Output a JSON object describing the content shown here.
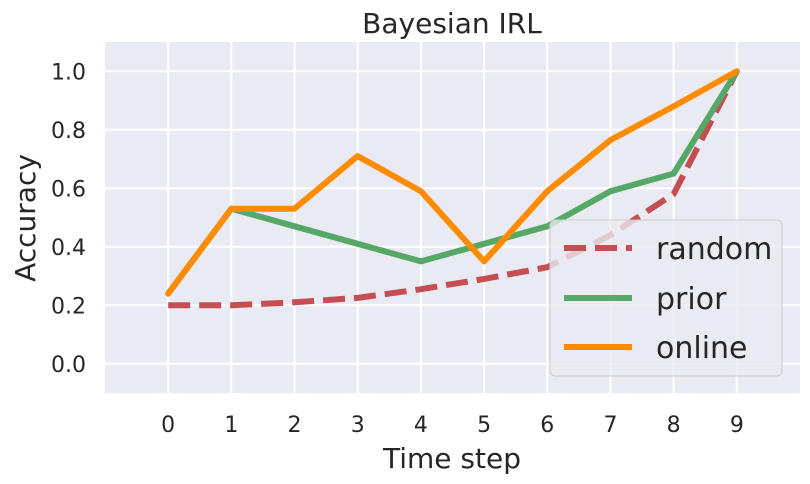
{
  "chart_data": {
    "type": "line",
    "title": "Bayesian IRL",
    "xlabel": "Time step",
    "ylabel": "Accuracy",
    "x": [
      0,
      1,
      2,
      3,
      4,
      5,
      6,
      7,
      8,
      9
    ],
    "xlim": [
      -1,
      10
    ],
    "ylim": [
      -0.1,
      1.1
    ],
    "yticks": [
      0.0,
      0.2,
      0.4,
      0.6,
      0.8,
      1.0
    ],
    "ytick_labels": [
      "0.0",
      "0.2",
      "0.4",
      "0.6",
      "0.8",
      "1.0"
    ],
    "xtick_labels": [
      "0",
      "1",
      "2",
      "3",
      "4",
      "5",
      "6",
      "7",
      "8",
      "9"
    ],
    "grid": true,
    "legend_position": "lower-right",
    "series": [
      {
        "name": "random",
        "color": "#c44e52",
        "dash": true,
        "values": [
          0.2,
          0.2,
          0.21,
          0.225,
          0.255,
          0.29,
          0.33,
          0.44,
          0.58,
          1.0
        ]
      },
      {
        "name": "prior",
        "color": "#55a868",
        "dash": false,
        "values": [
          0.24,
          0.53,
          0.47,
          0.41,
          0.35,
          0.41,
          0.47,
          0.59,
          0.65,
          1.0
        ]
      },
      {
        "name": "online",
        "color": "#ff8c00",
        "dash": false,
        "values": [
          0.24,
          0.53,
          0.53,
          0.71,
          0.59,
          0.35,
          0.59,
          0.765,
          0.88,
          1.0
        ]
      }
    ]
  }
}
